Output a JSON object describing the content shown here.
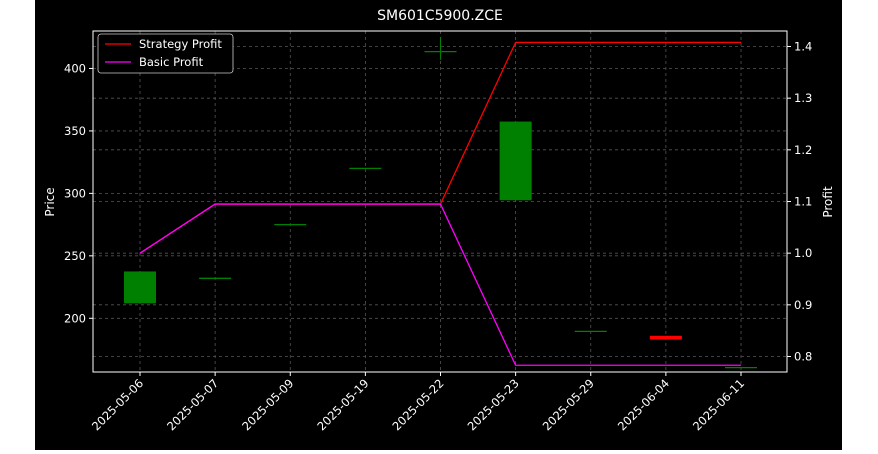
{
  "chart_data": {
    "type": "candlestick",
    "title": "SM601C5900.ZCE",
    "xlabel": "",
    "ylabel": "Price",
    "y2label": "Profit",
    "categories": [
      "2025-05-06",
      "2025-05-07",
      "2025-05-09",
      "2025-05-19",
      "2025-05-22",
      "2025-05-23",
      "2025-05-29",
      "2025-06-04",
      "2025-06-11"
    ],
    "ylim": [
      157,
      430
    ],
    "y2lim": [
      0.77,
      1.43
    ],
    "yticks": [
      200,
      250,
      300,
      350,
      400
    ],
    "y2ticks": [
      0.8,
      0.9,
      1.0,
      1.1,
      1.2,
      1.3,
      1.4
    ],
    "candles": [
      {
        "open": 212,
        "close": 237.5,
        "high": 237.5,
        "low": 212
      },
      {
        "open": 232,
        "close": 232,
        "high": 232,
        "low": 232
      },
      {
        "open": 275,
        "close": 275,
        "high": 275,
        "low": 275
      },
      {
        "open": 320,
        "close": 320,
        "high": 320,
        "low": 320
      },
      {
        "open": 413.5,
        "close": 413.5,
        "high": 425,
        "low": 407
      },
      {
        "open": 294.5,
        "close": 357.5,
        "high": 357.5,
        "low": 294.5
      },
      {
        "open": 189.5,
        "close": 189.5,
        "high": 189.5,
        "low": 189.5
      },
      {
        "open": 186,
        "close": 183,
        "high": 186,
        "low": 183
      },
      {
        "open": 160.5,
        "close": 160.5,
        "high": 160.5,
        "low": 160.5
      }
    ],
    "series": [
      {
        "name": "Strategy Profit",
        "color": "#ff0000",
        "values": [
          1.0,
          1.095,
          1.095,
          1.095,
          1.095,
          1.408,
          1.408,
          1.408,
          1.408
        ]
      },
      {
        "name": "Basic Profit",
        "color": "#ff00ff",
        "values": [
          1.0,
          1.095,
          1.095,
          1.095,
          1.095,
          0.783,
          0.783,
          0.783,
          0.783
        ]
      }
    ],
    "grid": true,
    "legend_position": "top-left",
    "colors": {
      "up": "#008000",
      "down": "#ff0000",
      "background": "#000000",
      "axes": "#ffffff",
      "grid": "#555555"
    }
  }
}
